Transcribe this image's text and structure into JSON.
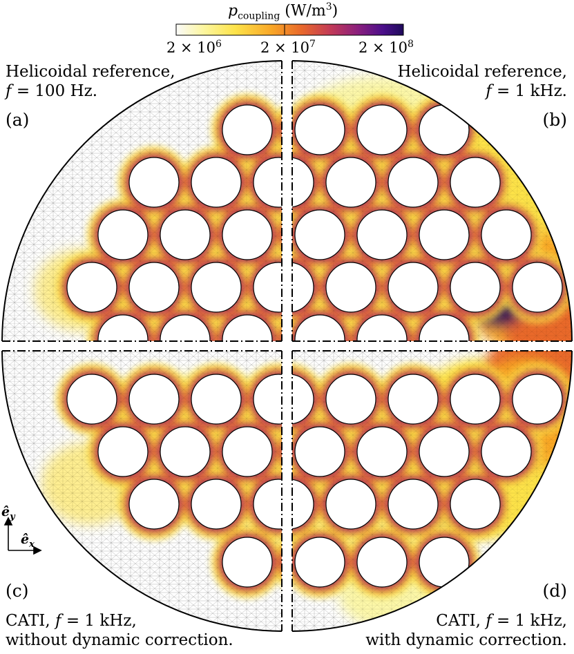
{
  "colorbar": {
    "title_var": "p",
    "title_sub": "coupling",
    "title_unit": "(W/m",
    "title_unit_exp": "3",
    "title_unit_close": ")",
    "scale": "log",
    "range": [
      1000000,
      300000000
    ],
    "ticks": [
      {
        "base": "2 × 10",
        "exp": "6",
        "value": 2000000
      },
      {
        "base": "2 × 10",
        "exp": "7",
        "value": 20000000
      },
      {
        "base": "2 × 10",
        "exp": "8",
        "value": 200000000
      }
    ],
    "colors": [
      "#fafafa",
      "#fcf6a0",
      "#fde34a",
      "#f9a727",
      "#e9692b",
      "#c23a57",
      "#8a1f7d",
      "#4b0f8a",
      "#1e0a5a"
    ]
  },
  "panels": [
    {
      "id": "a",
      "tag": "(a)",
      "line1": "Helicoidal reference,",
      "line2_var": "f",
      "line2_rest": " = 100 Hz.",
      "quadrant": "top-left",
      "frequency_hz": 100
    },
    {
      "id": "b",
      "tag": "(b)",
      "line1": "Helicoidal reference,",
      "line2_var": "f",
      "line2_rest": " = 1 kHz.",
      "quadrant": "top-right",
      "frequency_hz": 1000
    },
    {
      "id": "c",
      "tag": "(c)",
      "line1_pre": "CATI, ",
      "line1_var": "f",
      "line1_rest": " = 1 kHz,",
      "line2": "without dynamic correction.",
      "quadrant": "bottom-left",
      "frequency_hz": 1000
    },
    {
      "id": "d",
      "tag": "(d)",
      "line1_pre": "CATI, ",
      "line1_var": "f",
      "line1_rest": " = 1 kHz,",
      "line2": "with dynamic correction.",
      "quadrant": "bottom-right",
      "frequency_hz": 1000
    }
  ],
  "axes": {
    "ey_base": "ê",
    "ey_sub": "y",
    "ex_base": "ê",
    "ex_sub": "x"
  }
}
